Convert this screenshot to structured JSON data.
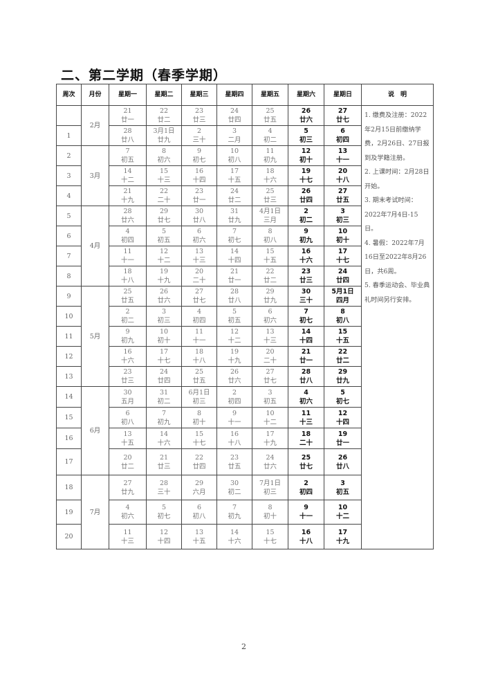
{
  "title": "二、第二学期（春季学期）",
  "headers": [
    "周次",
    "月份",
    "星期一",
    "星期二",
    "星期三",
    "星期四",
    "星期五",
    "星期六",
    "星期日",
    "说　明"
  ],
  "months": [
    {
      "label": "2月",
      "span": 2
    },
    {
      "label": "3月",
      "span": 3
    },
    {
      "label": "4月",
      "span": 4
    },
    {
      "label": "5月",
      "span": 5
    },
    {
      "label": "6月",
      "span": 4
    },
    {
      "label": "7月",
      "span": 3
    }
  ],
  "weeks": [
    {
      "week": "",
      "days": [
        [
          "21",
          "廿一"
        ],
        [
          "22",
          "廿二"
        ],
        [
          "23",
          "廿三"
        ],
        [
          "24",
          "廿四"
        ],
        [
          "25",
          "廿五"
        ],
        [
          "26",
          "廿六"
        ],
        [
          "27",
          "廿七"
        ]
      ]
    },
    {
      "week": "1",
      "days": [
        [
          "28",
          "廿八"
        ],
        [
          "3月1日",
          "廿九"
        ],
        [
          "2",
          "三十"
        ],
        [
          "3",
          "二月"
        ],
        [
          "4",
          "初二"
        ],
        [
          "5",
          "初三"
        ],
        [
          "6",
          "初四"
        ]
      ]
    },
    {
      "week": "2",
      "days": [
        [
          "7",
          "初五"
        ],
        [
          "8",
          "初六"
        ],
        [
          "9",
          "初七"
        ],
        [
          "10",
          "初八"
        ],
        [
          "11",
          "初九"
        ],
        [
          "12",
          "初十"
        ],
        [
          "13",
          "十一"
        ]
      ]
    },
    {
      "week": "3",
      "days": [
        [
          "14",
          "十二"
        ],
        [
          "15",
          "十三"
        ],
        [
          "16",
          "十四"
        ],
        [
          "17",
          "十五"
        ],
        [
          "18",
          "十六"
        ],
        [
          "19",
          "十七"
        ],
        [
          "20",
          "十八"
        ]
      ]
    },
    {
      "week": "4",
      "days": [
        [
          "21",
          "十九"
        ],
        [
          "22",
          "二十"
        ],
        [
          "23",
          "廿一"
        ],
        [
          "24",
          "廿二"
        ],
        [
          "25",
          "廿三"
        ],
        [
          "26",
          "廿四"
        ],
        [
          "27",
          "廿五"
        ]
      ]
    },
    {
      "week": "5",
      "days": [
        [
          "28",
          "廿六"
        ],
        [
          "29",
          "廿七"
        ],
        [
          "30",
          "廿八"
        ],
        [
          "31",
          "廿九"
        ],
        [
          "4月1日",
          "三月"
        ],
        [
          "2",
          "初二"
        ],
        [
          "3",
          "初三"
        ]
      ]
    },
    {
      "week": "6",
      "days": [
        [
          "4",
          "初四"
        ],
        [
          "5",
          "初五"
        ],
        [
          "6",
          "初六"
        ],
        [
          "7",
          "初七"
        ],
        [
          "8",
          "初八"
        ],
        [
          "9",
          "初九"
        ],
        [
          "10",
          "初十"
        ]
      ]
    },
    {
      "week": "7",
      "days": [
        [
          "11",
          "十一"
        ],
        [
          "12",
          "十二"
        ],
        [
          "13",
          "十三"
        ],
        [
          "14",
          "十四"
        ],
        [
          "15",
          "十五"
        ],
        [
          "16",
          "十六"
        ],
        [
          "17",
          "十七"
        ]
      ]
    },
    {
      "week": "8",
      "days": [
        [
          "18",
          "十八"
        ],
        [
          "19",
          "十九"
        ],
        [
          "20",
          "二十"
        ],
        [
          "21",
          "廿一"
        ],
        [
          "22",
          "廿二"
        ],
        [
          "23",
          "廿三"
        ],
        [
          "24",
          "廿四"
        ]
      ]
    },
    {
      "week": "9",
      "days": [
        [
          "25",
          "廿五"
        ],
        [
          "26",
          "廿六"
        ],
        [
          "27",
          "廿七"
        ],
        [
          "28",
          "廿八"
        ],
        [
          "29",
          "廿九"
        ],
        [
          "30",
          "三十"
        ],
        [
          "5月1日",
          "四月"
        ]
      ]
    },
    {
      "week": "10",
      "days": [
        [
          "2",
          "初二"
        ],
        [
          "3",
          "初三"
        ],
        [
          "4",
          "初四"
        ],
        [
          "5",
          "初五"
        ],
        [
          "6",
          "初六"
        ],
        [
          "7",
          "初七"
        ],
        [
          "8",
          "初八"
        ]
      ]
    },
    {
      "week": "11",
      "days": [
        [
          "9",
          "初九"
        ],
        [
          "10",
          "初十"
        ],
        [
          "11",
          "十一"
        ],
        [
          "12",
          "十二"
        ],
        [
          "13",
          "十三"
        ],
        [
          "14",
          "十四"
        ],
        [
          "15",
          "十五"
        ]
      ]
    },
    {
      "week": "12",
      "days": [
        [
          "16",
          "十六"
        ],
        [
          "17",
          "十七"
        ],
        [
          "18",
          "十八"
        ],
        [
          "19",
          "十九"
        ],
        [
          "20",
          "二十"
        ],
        [
          "21",
          "廿一"
        ],
        [
          "22",
          "廿二"
        ]
      ]
    },
    {
      "week": "13",
      "days": [
        [
          "23",
          "廿三"
        ],
        [
          "24",
          "廿四"
        ],
        [
          "25",
          "廿五"
        ],
        [
          "26",
          "廿六"
        ],
        [
          "27",
          "廿七"
        ],
        [
          "28",
          "廿八"
        ],
        [
          "29",
          "廿九"
        ]
      ]
    },
    {
      "week": "14",
      "days": [
        [
          "30",
          "五月"
        ],
        [
          "31",
          "初二"
        ],
        [
          "6月1日",
          "初三"
        ],
        [
          "2",
          "初四"
        ],
        [
          "3",
          "初五"
        ],
        [
          "4",
          "初六"
        ],
        [
          "5",
          "初七"
        ]
      ]
    },
    {
      "week": "15",
      "days": [
        [
          "6",
          "初八"
        ],
        [
          "7",
          "初九"
        ],
        [
          "8",
          "初十"
        ],
        [
          "9",
          "十一"
        ],
        [
          "10",
          "十二"
        ],
        [
          "11",
          "十三"
        ],
        [
          "12",
          "十四"
        ]
      ]
    },
    {
      "week": "16",
      "days": [
        [
          "13",
          "十五"
        ],
        [
          "14",
          "十六"
        ],
        [
          "15",
          "十七"
        ],
        [
          "16",
          "十八"
        ],
        [
          "17",
          "十九"
        ],
        [
          "18",
          "二十"
        ],
        [
          "19",
          "廿一"
        ]
      ]
    },
    {
      "week": "17",
      "days": [
        [
          "20",
          "廿二"
        ],
        [
          "21",
          "廿三"
        ],
        [
          "22",
          "廿四"
        ],
        [
          "23",
          "廿五"
        ],
        [
          "24",
          "廿六"
        ],
        [
          "25",
          "廿七"
        ],
        [
          "26",
          "廿八"
        ]
      ]
    },
    {
      "week": "18",
      "days": [
        [
          "27",
          "廿九"
        ],
        [
          "28",
          "三十"
        ],
        [
          "29",
          "六月"
        ],
        [
          "30",
          "初二"
        ],
        [
          "7月1日",
          "初三"
        ],
        [
          "2",
          "初四"
        ],
        [
          "3",
          "初五"
        ]
      ]
    },
    {
      "week": "19",
      "days": [
        [
          "4",
          "初六"
        ],
        [
          "5",
          "初七"
        ],
        [
          "6",
          "初八"
        ],
        [
          "7",
          "初九"
        ],
        [
          "8",
          "初十"
        ],
        [
          "9",
          "十一"
        ],
        [
          "10",
          "十二"
        ]
      ]
    },
    {
      "week": "20",
      "days": [
        [
          "11",
          "十三"
        ],
        [
          "12",
          "十四"
        ],
        [
          "13",
          "十五"
        ],
        [
          "14",
          "十六"
        ],
        [
          "15",
          "十七"
        ],
        [
          "16",
          "十八"
        ],
        [
          "17",
          "十九"
        ]
      ]
    }
  ],
  "notes": [
    "1. 缴费及注册：2022年2月15日前缴纳学费，2月26日、27日报到及学籍注册。",
    "2. 上课时间：2月28日开始。",
    "3. 期末考试时间：2022年7月4日-15日。",
    "4. 暑假：2022年7月16日至2022年8月26日，共6周。",
    "5. 春季运动会、毕业典礼时间另行安排。"
  ],
  "page_number": "2"
}
